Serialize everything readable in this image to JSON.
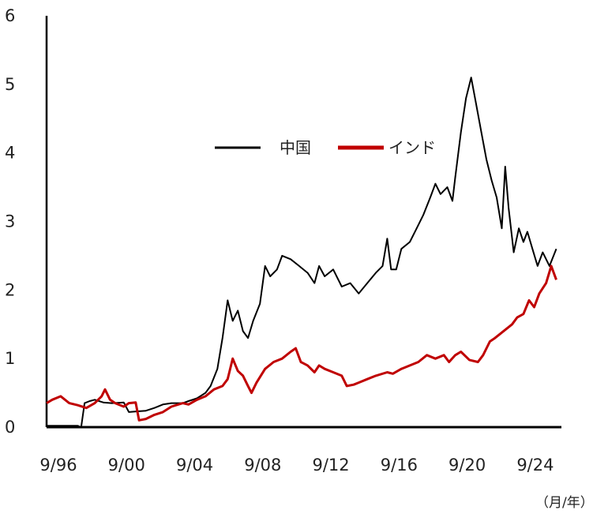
{
  "chart_data": {
    "type": "line",
    "title": "",
    "xlabel": "",
    "ylabel": "",
    "unit_label": "（月/年）",
    "ylim": [
      0,
      6
    ],
    "yticks": [
      "0",
      "1",
      "2",
      "3",
      "4",
      "5",
      "6"
    ],
    "xlim": [
      1996.67,
      2026.9
    ],
    "xticks": [
      {
        "label": "9/96",
        "x": 1996.67
      },
      {
        "label": "9/00",
        "x": 2000.67
      },
      {
        "label": "9/04",
        "x": 2004.67
      },
      {
        "label": "9/08",
        "x": 2008.67
      },
      {
        "label": "9/12",
        "x": 2012.67
      },
      {
        "label": "9/16",
        "x": 2016.67
      },
      {
        "label": "9/20",
        "x": 2020.67
      },
      {
        "label": "9/24",
        "x": 2024.67
      }
    ],
    "legend": {
      "placement": "top-center"
    },
    "grid": false,
    "series": [
      {
        "name": "中国",
        "color": "#000000",
        "points": [
          [
            1996.67,
            0.02
          ],
          [
            1998.5,
            0.02
          ],
          [
            1998.7,
            0.0
          ],
          [
            1998.9,
            0.35
          ],
          [
            1999.2,
            0.38
          ],
          [
            1999.5,
            0.4
          ],
          [
            2000.0,
            0.36
          ],
          [
            2000.5,
            0.35
          ],
          [
            2001.2,
            0.36
          ],
          [
            2001.5,
            0.22
          ],
          [
            2002.0,
            0.23
          ],
          [
            2002.5,
            0.24
          ],
          [
            2003.0,
            0.28
          ],
          [
            2003.5,
            0.33
          ],
          [
            2004.0,
            0.35
          ],
          [
            2004.67,
            0.35
          ],
          [
            2005.0,
            0.38
          ],
          [
            2005.5,
            0.42
          ],
          [
            2006.0,
            0.5
          ],
          [
            2006.3,
            0.6
          ],
          [
            2006.7,
            0.85
          ],
          [
            2007.0,
            1.3
          ],
          [
            2007.3,
            1.85
          ],
          [
            2007.6,
            1.55
          ],
          [
            2007.9,
            1.7
          ],
          [
            2008.2,
            1.4
          ],
          [
            2008.5,
            1.3
          ],
          [
            2008.8,
            1.55
          ],
          [
            2009.2,
            1.8
          ],
          [
            2009.5,
            2.35
          ],
          [
            2009.8,
            2.2
          ],
          [
            2010.2,
            2.3
          ],
          [
            2010.5,
            2.5
          ],
          [
            2011.0,
            2.45
          ],
          [
            2011.5,
            2.35
          ],
          [
            2012.0,
            2.25
          ],
          [
            2012.4,
            2.1
          ],
          [
            2012.67,
            2.35
          ],
          [
            2013.0,
            2.2
          ],
          [
            2013.5,
            2.3
          ],
          [
            2014.0,
            2.05
          ],
          [
            2014.5,
            2.1
          ],
          [
            2015.0,
            1.95
          ],
          [
            2015.5,
            2.1
          ],
          [
            2016.0,
            2.25
          ],
          [
            2016.4,
            2.35
          ],
          [
            2016.67,
            2.75
          ],
          [
            2016.9,
            2.3
          ],
          [
            2017.2,
            2.3
          ],
          [
            2017.5,
            2.6
          ],
          [
            2018.0,
            2.7
          ],
          [
            2018.4,
            2.9
          ],
          [
            2018.8,
            3.1
          ],
          [
            2019.2,
            3.35
          ],
          [
            2019.5,
            3.55
          ],
          [
            2019.8,
            3.4
          ],
          [
            2020.2,
            3.5
          ],
          [
            2020.5,
            3.3
          ],
          [
            2020.67,
            3.65
          ],
          [
            2021.0,
            4.3
          ],
          [
            2021.3,
            4.8
          ],
          [
            2021.6,
            5.1
          ],
          [
            2021.9,
            4.7
          ],
          [
            2022.2,
            4.3
          ],
          [
            2022.5,
            3.9
          ],
          [
            2022.8,
            3.6
          ],
          [
            2023.1,
            3.35
          ],
          [
            2023.4,
            2.9
          ],
          [
            2023.6,
            3.8
          ],
          [
            2023.8,
            3.2
          ],
          [
            2024.1,
            2.55
          ],
          [
            2024.4,
            2.9
          ],
          [
            2024.67,
            2.7
          ],
          [
            2024.9,
            2.85
          ],
          [
            2025.2,
            2.6
          ],
          [
            2025.5,
            2.35
          ],
          [
            2025.8,
            2.55
          ],
          [
            2026.2,
            2.35
          ],
          [
            2026.6,
            2.6
          ]
        ]
      },
      {
        "name": "インド",
        "color": "#c00000",
        "points": [
          [
            1996.67,
            0.35
          ],
          [
            1997.0,
            0.4
          ],
          [
            1997.5,
            0.45
          ],
          [
            1998.0,
            0.35
          ],
          [
            1998.5,
            0.32
          ],
          [
            1999.0,
            0.28
          ],
          [
            1999.5,
            0.35
          ],
          [
            1999.9,
            0.45
          ],
          [
            2000.1,
            0.55
          ],
          [
            2000.4,
            0.4
          ],
          [
            2000.7,
            0.35
          ],
          [
            2001.2,
            0.3
          ],
          [
            2001.5,
            0.35
          ],
          [
            2001.9,
            0.36
          ],
          [
            2002.1,
            0.1
          ],
          [
            2002.5,
            0.12
          ],
          [
            2003.0,
            0.18
          ],
          [
            2003.5,
            0.22
          ],
          [
            2004.0,
            0.3
          ],
          [
            2004.67,
            0.35
          ],
          [
            2005.0,
            0.33
          ],
          [
            2005.5,
            0.4
          ],
          [
            2006.0,
            0.45
          ],
          [
            2006.5,
            0.55
          ],
          [
            2007.0,
            0.6
          ],
          [
            2007.3,
            0.7
          ],
          [
            2007.6,
            1.0
          ],
          [
            2007.9,
            0.82
          ],
          [
            2008.2,
            0.75
          ],
          [
            2008.5,
            0.6
          ],
          [
            2008.7,
            0.5
          ],
          [
            2009.0,
            0.65
          ],
          [
            2009.5,
            0.85
          ],
          [
            2010.0,
            0.95
          ],
          [
            2010.5,
            1.0
          ],
          [
            2011.0,
            1.1
          ],
          [
            2011.3,
            1.15
          ],
          [
            2011.6,
            0.95
          ],
          [
            2012.0,
            0.9
          ],
          [
            2012.4,
            0.8
          ],
          [
            2012.67,
            0.9
          ],
          [
            2013.0,
            0.85
          ],
          [
            2013.5,
            0.8
          ],
          [
            2014.0,
            0.75
          ],
          [
            2014.3,
            0.6
          ],
          [
            2014.7,
            0.62
          ],
          [
            2015.0,
            0.65
          ],
          [
            2015.5,
            0.7
          ],
          [
            2016.0,
            0.75
          ],
          [
            2016.67,
            0.8
          ],
          [
            2017.0,
            0.78
          ],
          [
            2017.5,
            0.85
          ],
          [
            2018.0,
            0.9
          ],
          [
            2018.5,
            0.95
          ],
          [
            2019.0,
            1.05
          ],
          [
            2019.5,
            1.0
          ],
          [
            2020.0,
            1.05
          ],
          [
            2020.3,
            0.95
          ],
          [
            2020.67,
            1.05
          ],
          [
            2021.0,
            1.1
          ],
          [
            2021.5,
            0.98
          ],
          [
            2022.0,
            0.95
          ],
          [
            2022.3,
            1.05
          ],
          [
            2022.7,
            1.25
          ],
          [
            2023.0,
            1.3
          ],
          [
            2023.5,
            1.4
          ],
          [
            2024.0,
            1.5
          ],
          [
            2024.3,
            1.6
          ],
          [
            2024.67,
            1.65
          ],
          [
            2025.0,
            1.85
          ],
          [
            2025.3,
            1.75
          ],
          [
            2025.6,
            1.95
          ],
          [
            2026.0,
            2.1
          ],
          [
            2026.3,
            2.35
          ],
          [
            2026.6,
            2.15
          ]
        ]
      }
    ]
  }
}
